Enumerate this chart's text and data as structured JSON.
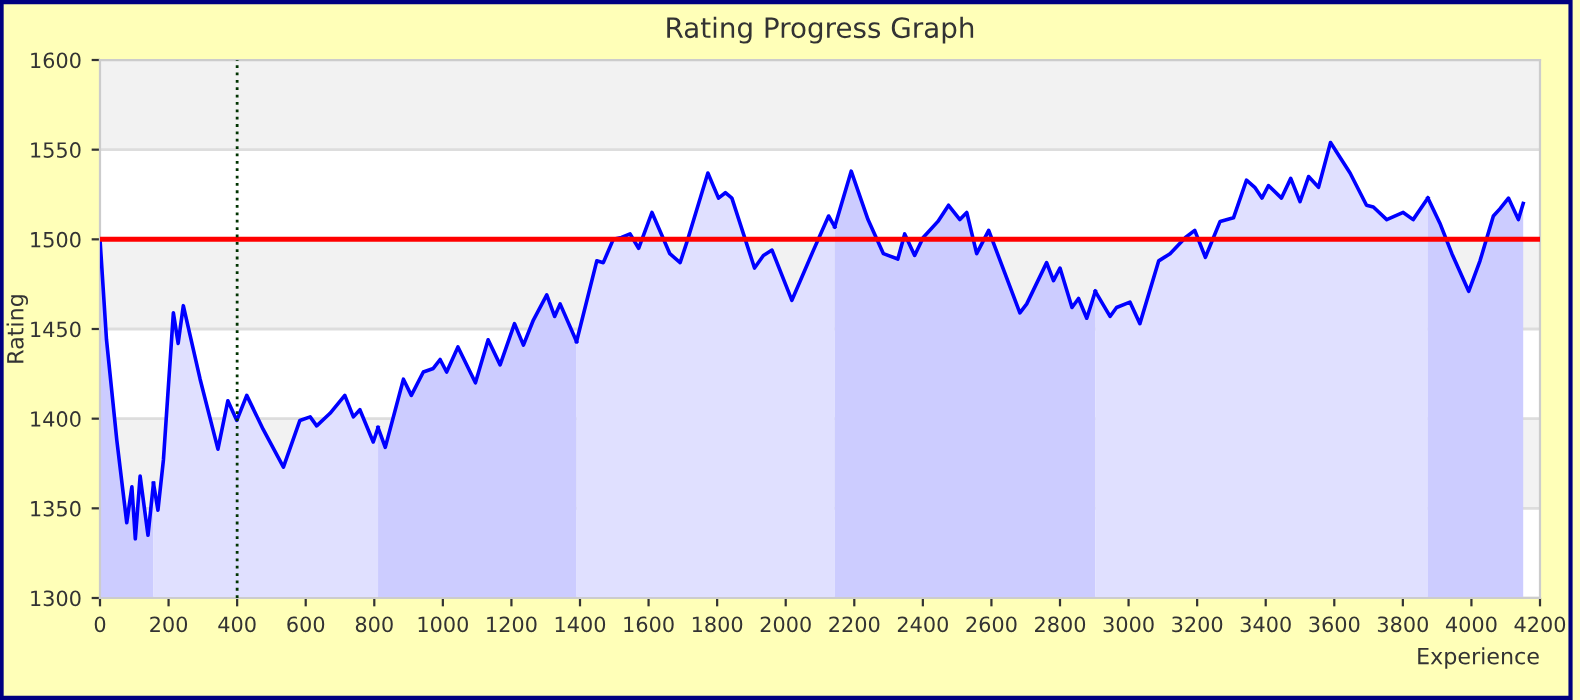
{
  "chart_data": {
    "type": "area",
    "title": "Rating Progress Graph",
    "xlabel": "Experience",
    "ylabel": "Rating",
    "series": [
      {
        "color": "#0000ff",
        "x": [
          0,
          19,
          49,
          78,
          93,
          103,
          117,
          140,
          156
        ],
        "values": [
          1500,
          1444,
          1388,
          1342,
          1362,
          1333,
          1368,
          1335,
          1364
        ]
      },
      {
        "color": "#0000ff",
        "x": [
          156,
          169,
          185,
          214,
          228,
          243,
          292,
          344,
          373,
          399,
          428,
          476,
          535,
          583,
          613,
          632,
          671,
          714,
          739,
          758,
          797,
          811
        ],
        "values": [
          1364,
          1349,
          1377,
          1459,
          1442,
          1463,
          1422,
          1383,
          1410,
          1399,
          1413,
          1394,
          1373,
          1399,
          1401,
          1396,
          1403,
          1413,
          1401,
          1405,
          1387,
          1395
        ]
      },
      {
        "color": "#0000ff",
        "x": [
          811,
          832,
          885,
          908,
          943,
          972,
          992,
          1011,
          1044,
          1095,
          1132,
          1167,
          1209,
          1235,
          1264,
          1303,
          1326,
          1342,
          1390
        ],
        "values": [
          1395,
          1384,
          1422,
          1413,
          1426,
          1428,
          1433,
          1426,
          1440,
          1420,
          1444,
          1430,
          1453,
          1441,
          1455,
          1469,
          1457,
          1464,
          1443
        ]
      },
      {
        "color": "#0000ff",
        "x": [
          1390,
          1449,
          1468,
          1497,
          1521,
          1546,
          1571,
          1610,
          1662,
          1692,
          1711,
          1773,
          1804,
          1824,
          1843,
          1909,
          1935,
          1960,
          2018,
          2081,
          2125,
          2143
        ],
        "values": [
          1443,
          1488,
          1487,
          1500,
          1501,
          1503,
          1495,
          1515,
          1492,
          1487,
          1498,
          1537,
          1523,
          1526,
          1523,
          1484,
          1491,
          1494,
          1466,
          1494,
          1513,
          1507
        ]
      },
      {
        "color": "#0000ff",
        "x": [
          2143,
          2191,
          2240,
          2285,
          2327,
          2347,
          2376,
          2401,
          2444,
          2475,
          2508,
          2528,
          2557,
          2592,
          2683,
          2703,
          2761,
          2781,
          2800,
          2835,
          2854,
          2878,
          2903
        ],
        "values": [
          1507,
          1538,
          1511,
          1492,
          1489,
          1503,
          1491,
          1501,
          1510,
          1519,
          1511,
          1515,
          1492,
          1505,
          1459,
          1464,
          1487,
          1477,
          1484,
          1462,
          1467,
          1456,
          1471
        ]
      },
      {
        "color": "#0000ff",
        "x": [
          2903,
          2946,
          2965,
          3004,
          3033,
          3088,
          3121,
          3166,
          3193,
          3224,
          3267,
          3306,
          3344,
          3368,
          3389,
          3408,
          3446,
          3473,
          3500,
          3525,
          3554,
          3589,
          3646,
          3694,
          3714,
          3753,
          3801,
          3830,
          3873
        ],
        "values": [
          1471,
          1457,
          1462,
          1465,
          1453,
          1488,
          1492,
          1501,
          1505,
          1490,
          1510,
          1512,
          1533,
          1529,
          1523,
          1530,
          1523,
          1534,
          1521,
          1535,
          1529,
          1554,
          1537,
          1519,
          1518,
          1511,
          1515,
          1511,
          1523
        ]
      },
      {
        "color": "#0000ff",
        "x": [
          3873,
          3908,
          3943,
          3992,
          4025,
          4064,
          4083,
          4108,
          4137,
          4151
        ],
        "values": [
          1523,
          1509,
          1492,
          1471,
          1488,
          1513,
          1517,
          1523,
          1511,
          1520
        ]
      }
    ],
    "xlim": [
      0,
      4200
    ],
    "ylim": [
      1300,
      1600
    ],
    "xticks": [
      0,
      200,
      400,
      600,
      800,
      1000,
      1200,
      1400,
      1600,
      1800,
      2000,
      2200,
      2400,
      2600,
      2800,
      3000,
      3200,
      3400,
      3600,
      3800,
      4000,
      4200
    ],
    "yticks": [
      1300,
      1350,
      1400,
      1450,
      1500,
      1550,
      1600
    ],
    "grid": "y",
    "ref_lines": [
      {
        "axis": "y",
        "value": 1500,
        "color": "#ff0000",
        "line_style": "solid"
      },
      {
        "axis": "x",
        "value": 400,
        "color": "#003300",
        "line_style": "dotted"
      }
    ]
  }
}
